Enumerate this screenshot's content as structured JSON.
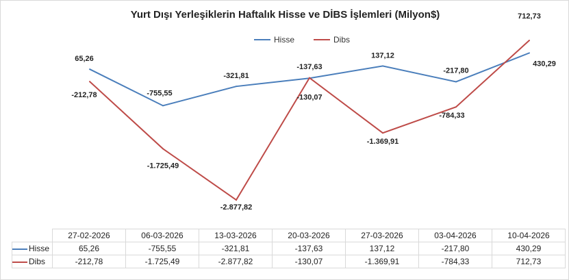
{
  "chart_data": {
    "type": "line",
    "title": "Yurt Dışı Yerleşiklerin Haftalık Hisse ve DİBS İşlemleri (Milyon$)",
    "categories": [
      "27-02-2026",
      "06-03-2026",
      "13-03-2026",
      "20-03-2026",
      "27-03-2026",
      "03-04-2026",
      "10-04-2026"
    ],
    "series": [
      {
        "name": "Hisse",
        "color": "#4a7ebb",
        "values": [
          65.26,
          -755.55,
          -321.81,
          -137.63,
          137.12,
          -217.8,
          430.29
        ],
        "labels": [
          "65,26",
          "-755,55",
          "-321,81",
          "-137,63",
          "137,12",
          "-217,80",
          "430,29"
        ]
      },
      {
        "name": "Dibs",
        "color": "#be4b48",
        "values": [
          -212.78,
          -1725.49,
          -2877.82,
          -130.07,
          -1369.91,
          -784.33,
          712.73
        ],
        "labels": [
          "-212,78",
          "-1.725,49",
          "-2.877,82",
          "-130,07",
          "-1.369,91",
          "-784,33",
          "712,73"
        ]
      }
    ],
    "ylim": [
      -3000,
      1000
    ],
    "grid": false,
    "legend": "top-center",
    "data_table": true
  }
}
